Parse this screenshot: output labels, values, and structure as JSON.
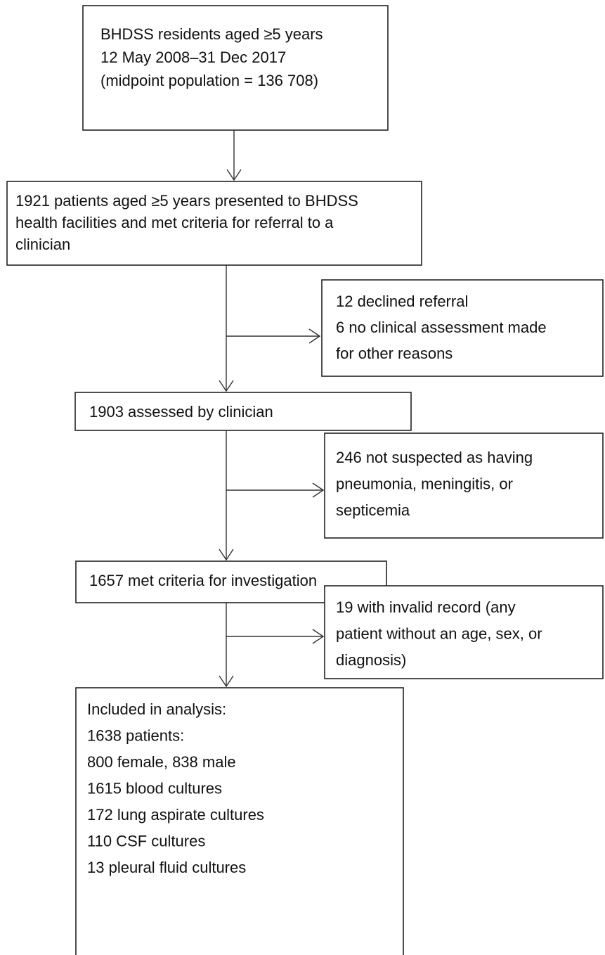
{
  "nodes": [
    {
      "lines": [
        "BHDSS residents aged ≥5 years",
        "12 May 2008–31 Dec 2017",
        "(midpoint population = 136 708)"
      ]
    },
    {
      "lines": [
        "1921 patients aged ≥5 years presented to BHDSS",
        "health facilities and met criteria for referral to a",
        "clinician"
      ]
    },
    {
      "lines": [
        "12 declined referral",
        "6 no clinical assessment made",
        "for other reasons"
      ]
    },
    {
      "lines": [
        "1903 assessed by clinician"
      ]
    },
    {
      "lines": [
        "246 not suspected as having",
        "pneumonia, meningitis, or",
        "septicemia"
      ]
    },
    {
      "lines": [
        "1657 met criteria for investigation"
      ]
    },
    {
      "lines": [
        "19 with invalid record (any",
        "patient without an age, sex, or",
        "diagnosis)"
      ]
    },
    {
      "lines": [
        "Included in analysis:",
        "1638 patients:",
        "800 female, 838 male",
        "1615 blood cultures",
        "172 lung aspirate cultures",
        "110 CSF cultures",
        "13 pleural fluid cultures"
      ]
    }
  ]
}
